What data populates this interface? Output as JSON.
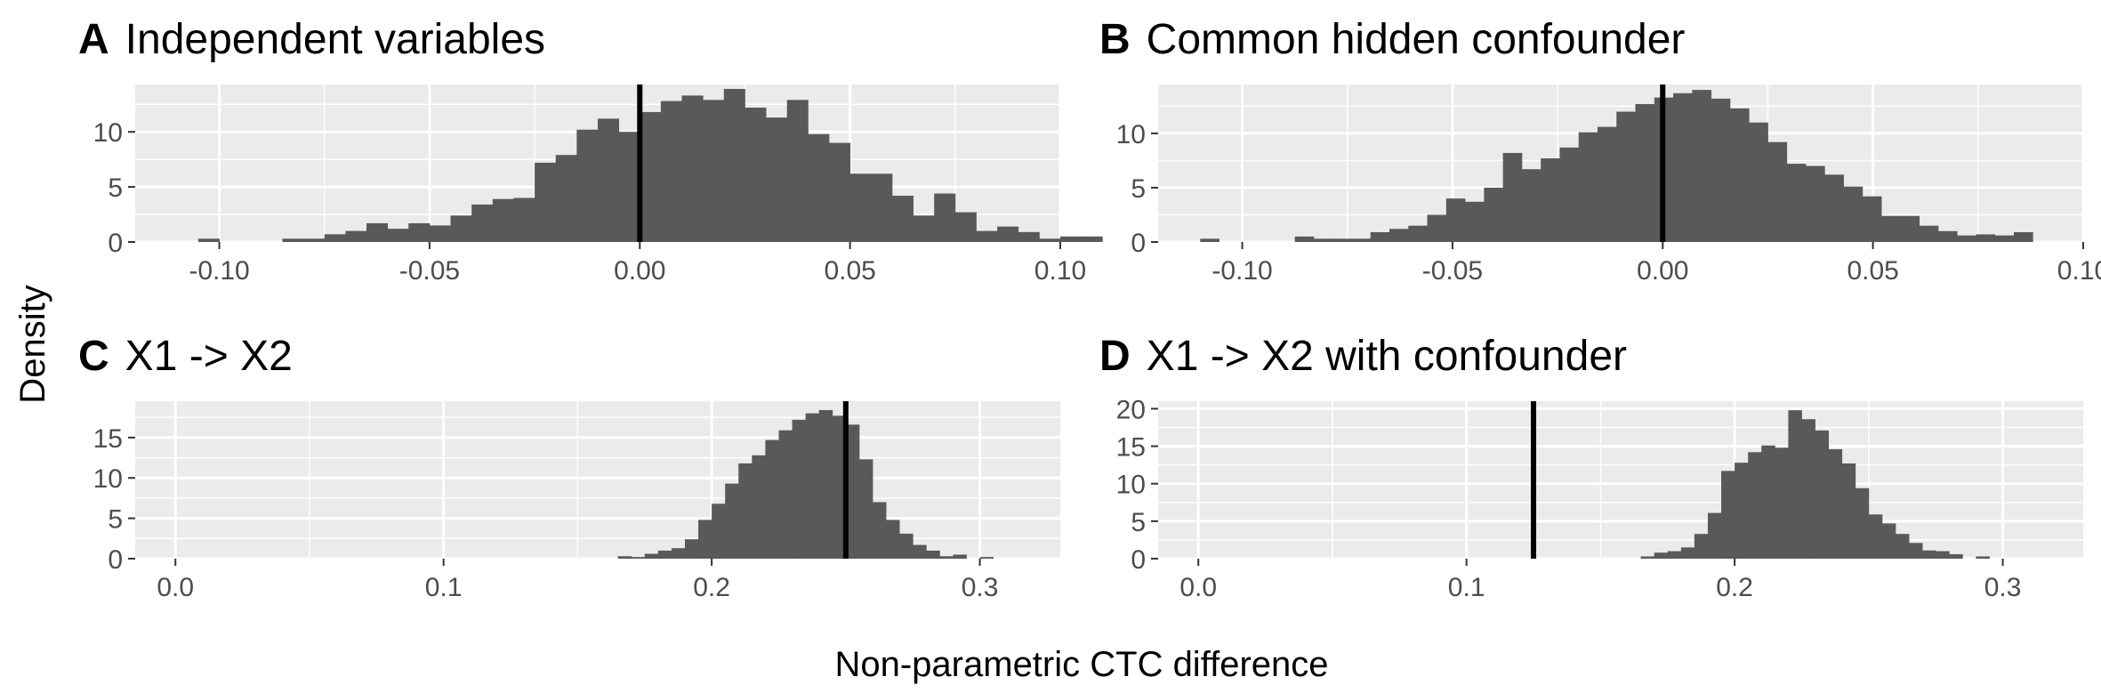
{
  "figure": {
    "ylabel": "Density",
    "xlabel": "Non-parametric CTC difference"
  },
  "chart_data": [
    {
      "type": "histogram",
      "panel": "A",
      "title": "Independent variables",
      "xlim": [
        -0.12,
        0.1
      ],
      "ylim": [
        0,
        14.3
      ],
      "x_ticks": [
        -0.1,
        -0.05,
        0.0,
        0.05,
        0.1
      ],
      "x_tick_labels": [
        "-0.10",
        "-0.05",
        "0.00",
        "0.05",
        "0.10"
      ],
      "y_ticks": [
        0,
        5,
        10
      ],
      "y_tick_labels": [
        "0",
        "5",
        "10"
      ],
      "reference_line": 0.0,
      "bin_start": -0.105,
      "bin_width": 0.005,
      "counts": [
        0.3,
        0,
        0,
        0,
        0.3,
        0.3,
        0.7,
        1.0,
        1.7,
        1.2,
        1.7,
        1.5,
        2.4,
        3.4,
        3.9,
        4.0,
        7.2,
        7.9,
        10.2,
        11.2,
        10.0,
        11.8,
        12.8,
        13.3,
        12.9,
        13.9,
        12.2,
        11.3,
        12.9,
        9.8,
        9.0,
        6.2,
        6.2,
        4.2,
        2.4,
        4.4,
        2.7,
        1.0,
        1.4,
        0.9,
        0.3,
        0.5,
        0.5
      ]
    },
    {
      "type": "histogram",
      "panel": "B",
      "title": "Common hidden confounder",
      "xlim": [
        -0.12,
        0.1
      ],
      "ylim": [
        0,
        14.5
      ],
      "x_ticks": [
        -0.1,
        -0.05,
        0.0,
        0.05,
        0.1
      ],
      "x_tick_labels": [
        "-0.10",
        "-0.05",
        "0.00",
        "0.05",
        "0.10"
      ],
      "y_ticks": [
        0,
        5,
        10
      ],
      "y_tick_labels": [
        "0",
        "5",
        "10"
      ],
      "reference_line": 0.0,
      "bin_start": -0.11,
      "bin_width": 0.0045,
      "counts": [
        0.3,
        0,
        0,
        0,
        0,
        0.5,
        0.3,
        0.3,
        0.3,
        0.9,
        1.2,
        1.5,
        2.5,
        4.0,
        3.7,
        5.0,
        8.2,
        6.7,
        7.7,
        8.7,
        10.1,
        10.6,
        12.0,
        12.7,
        13.3,
        13.7,
        14.0,
        13.2,
        12.3,
        11.0,
        9.2,
        7.2,
        7.0,
        6.2,
        5.1,
        4.2,
        2.4,
        2.4,
        1.5,
        1.0,
        0.6,
        0.7,
        0.6,
        0.9
      ]
    },
    {
      "type": "histogram",
      "panel": "C",
      "title": "X1 -> X2",
      "xlim": [
        -0.015,
        0.33
      ],
      "ylim": [
        0,
        19.5
      ],
      "x_ticks": [
        0.0,
        0.1,
        0.2,
        0.3
      ],
      "x_tick_labels": [
        "0.0",
        "0.1",
        "0.2",
        "0.3"
      ],
      "y_ticks": [
        0,
        5,
        10,
        15
      ],
      "y_tick_labels": [
        "0",
        "5",
        "10",
        "15"
      ],
      "reference_line": 0.25,
      "bin_start": 0.165,
      "bin_width": 0.005,
      "counts": [
        0.3,
        0.2,
        0.6,
        1.0,
        1.3,
        2.4,
        4.8,
        6.8,
        9.3,
        11.8,
        12.8,
        14.7,
        15.9,
        17.2,
        18.0,
        18.4,
        17.7,
        16.6,
        12.3,
        7.0,
        4.8,
        3.1,
        1.7,
        1.0,
        0.3,
        0.5,
        0,
        0.2
      ]
    },
    {
      "type": "histogram",
      "panel": "D",
      "title": "X1 -> X2 with confounder",
      "xlim": [
        -0.015,
        0.33
      ],
      "ylim": [
        0,
        21.0
      ],
      "x_ticks": [
        0.0,
        0.1,
        0.2,
        0.3
      ],
      "x_tick_labels": [
        "0.0",
        "0.1",
        "0.2",
        "0.3"
      ],
      "y_ticks": [
        0,
        5,
        10,
        15,
        20
      ],
      "y_tick_labels": [
        "0",
        "5",
        "10",
        "15",
        "20"
      ],
      "reference_line": 0.125,
      "bin_start": 0.165,
      "bin_width": 0.005,
      "counts": [
        0.3,
        0.8,
        1.0,
        1.5,
        3.3,
        6.1,
        11.7,
        12.8,
        14.2,
        15.1,
        14.8,
        19.8,
        18.6,
        17.1,
        14.6,
        12.7,
        9.4,
        5.9,
        4.7,
        3.3,
        2.1,
        1.1,
        1.0,
        0.6,
        0,
        0.3
      ]
    }
  ]
}
